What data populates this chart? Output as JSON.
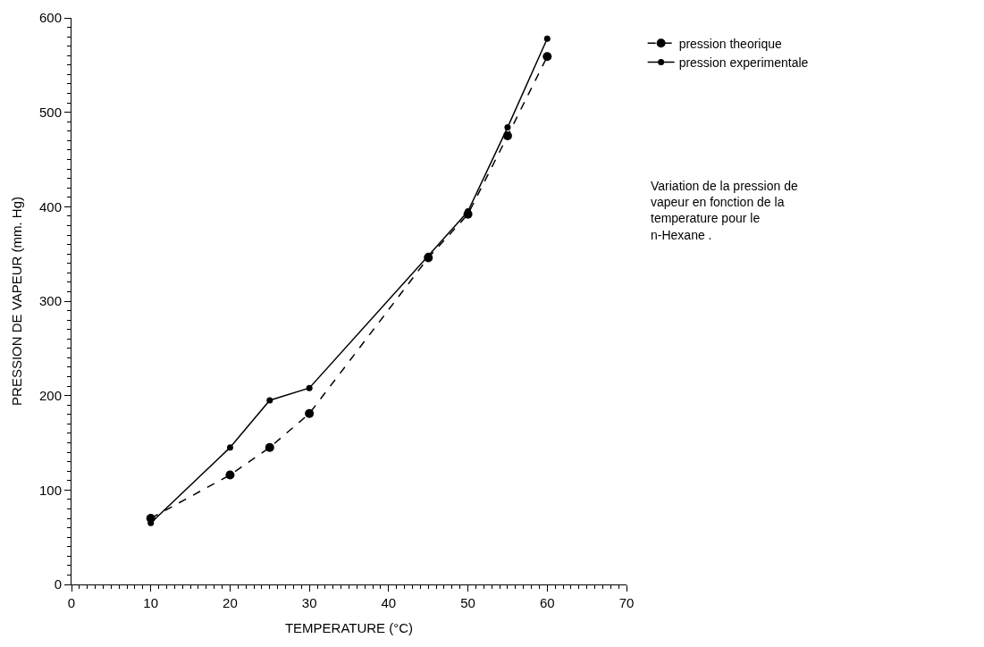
{
  "chart_data": {
    "type": "line",
    "x": [
      10,
      20,
      25,
      30,
      45,
      50,
      55,
      60
    ],
    "series": [
      {
        "name": "pression theorique",
        "color": "#000000",
        "line_style": "dashed",
        "values": [
          70,
          116,
          145,
          181,
          346,
          392,
          475,
          559
        ]
      },
      {
        "name": "pression experimentale",
        "color": "#000000",
        "line_style": "solid",
        "values": [
          65,
          145,
          195,
          208,
          348,
          395,
          484,
          578
        ]
      }
    ],
    "xlabel": "TEMPERATURE (°C)",
    "ylabel": "PRESSION DE VAPEUR (mm. Hg)",
    "xlim": [
      0,
      70
    ],
    "xticks": [
      0,
      10,
      20,
      30,
      40,
      50,
      60,
      70
    ],
    "ylim": [
      0,
      600
    ],
    "yticks": [
      0,
      100,
      200,
      300,
      400,
      500,
      600
    ],
    "legend": "top right",
    "marker": "circle",
    "annotations": [
      "Variation de la pression de\nvapeur en fonction de la\ntemperature pour le\nn-Hexane ."
    ]
  }
}
